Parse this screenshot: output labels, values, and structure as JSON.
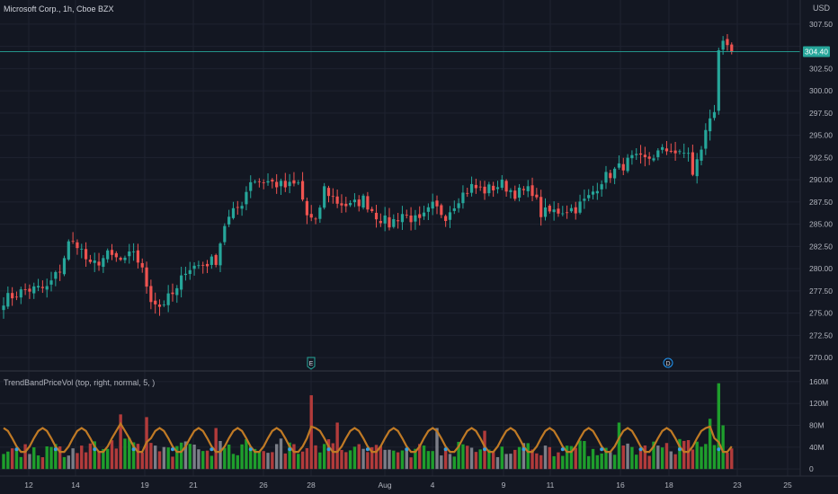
{
  "header": {
    "symbol_title": "Microsoft Corp., 1h, Cboe BZX",
    "currency": "USD"
  },
  "indicator": {
    "title": "TrendBandPriceVol (top, right, normal, 5, )"
  },
  "events": [
    {
      "label": "E",
      "x_label": "28"
    },
    {
      "label": "D",
      "x_label": "18"
    }
  ],
  "colors": {
    "background": "#131722",
    "up": "#26a69a",
    "down": "#ef5350",
    "vol_green": "#1e9e2c",
    "vol_red": "#b23b3b",
    "vol_gray": "#7b7e88",
    "trend_line": "#c07a25",
    "dot": "#3aa0e0",
    "price_line": "#26a69a"
  },
  "chart_data": [
    {
      "type": "candlestick",
      "title": "Microsoft Corp., 1h, Cboe BZX",
      "y_axis_ticks": [
        "307.50",
        "305.00",
        "302.50",
        "300.00",
        "297.50",
        "295.00",
        "292.50",
        "290.00",
        "287.50",
        "285.00",
        "282.50",
        "280.00",
        "277.50",
        "275.00",
        "272.50",
        "270.00"
      ],
      "ylim": [
        268.8,
        308.8
      ],
      "x_tick_labels": [
        "12",
        "14",
        "19",
        "21",
        "26",
        "28",
        "Aug",
        "4",
        "9",
        "11",
        "16",
        "18",
        "23",
        "25"
      ],
      "last_price_label": "304.40",
      "price_waypoints": [
        [
          0,
          276.5
        ],
        [
          5,
          277.6
        ],
        [
          10,
          277.8
        ],
        [
          13,
          279.9
        ],
        [
          15,
          282.8
        ],
        [
          17,
          282.9
        ],
        [
          20,
          280.2
        ],
        [
          24,
          281.5
        ],
        [
          28,
          280.7
        ],
        [
          30,
          282.1
        ],
        [
          32,
          279.7
        ],
        [
          34,
          276.7
        ],
        [
          36,
          275.8
        ],
        [
          40,
          277.5
        ],
        [
          42,
          280.0
        ],
        [
          46,
          280.5
        ],
        [
          49,
          281.0
        ],
        [
          51,
          285.0
        ],
        [
          55,
          287.5
        ],
        [
          57,
          290.0
        ],
        [
          61,
          289.8
        ],
        [
          65,
          289.2
        ],
        [
          68,
          289.5
        ],
        [
          70,
          286.0
        ],
        [
          72,
          285.0
        ],
        [
          74,
          289.0
        ],
        [
          77,
          287.5
        ],
        [
          80,
          287.0
        ],
        [
          83,
          287.8
        ],
        [
          86,
          286.0
        ],
        [
          89,
          285.0
        ],
        [
          92,
          286.2
        ],
        [
          96,
          285.2
        ],
        [
          99,
          287.0
        ],
        [
          102,
          286.0
        ],
        [
          105,
          288.0
        ],
        [
          108,
          289.2
        ],
        [
          111,
          288.8
        ],
        [
          115,
          289.5
        ],
        [
          118,
          288.5
        ],
        [
          122,
          288.8
        ],
        [
          124,
          286.2
        ],
        [
          128,
          286.5
        ],
        [
          132,
          286.8
        ],
        [
          135,
          288.0
        ],
        [
          138,
          290.0
        ],
        [
          141,
          291.0
        ],
        [
          145,
          292.3
        ],
        [
          148,
          292.2
        ],
        [
          151,
          293.0
        ],
        [
          154,
          293.5
        ],
        [
          156,
          292.7
        ],
        [
          158,
          293.2
        ],
        [
          159,
          290.4
        ],
        [
          161,
          293.6
        ],
        [
          163,
          297.0
        ],
        [
          164,
          298.0
        ],
        [
          165,
          304.8
        ],
        [
          166,
          305.0
        ],
        [
          167,
          304.5
        ],
        [
          168,
          304.4
        ]
      ],
      "candle_count": 169
    },
    {
      "type": "bar",
      "title": "TrendBandPriceVol (top, right, normal, 5, )",
      "y_axis_ticks": [
        "160M",
        "120M",
        "80M",
        "40M",
        "0"
      ],
      "ylim": [
        -3,
        168
      ],
      "unit": "M",
      "volume_waypoints": [
        [
          0,
          40
        ],
        [
          10,
          38
        ],
        [
          20,
          42
        ],
        [
          30,
          45
        ],
        [
          40,
          40
        ],
        [
          50,
          44
        ],
        [
          60,
          42
        ],
        [
          70,
          48
        ],
        [
          80,
          40
        ],
        [
          90,
          36
        ],
        [
          100,
          40
        ],
        [
          110,
          38
        ],
        [
          120,
          40
        ],
        [
          130,
          42
        ],
        [
          140,
          38
        ],
        [
          150,
          42
        ],
        [
          160,
          45
        ],
        [
          168,
          35
        ]
      ],
      "volume_spikes": [
        {
          "i": 27,
          "v": 100
        },
        {
          "i": 33,
          "v": 95
        },
        {
          "i": 49,
          "v": 75
        },
        {
          "i": 71,
          "v": 135
        },
        {
          "i": 77,
          "v": 85
        },
        {
          "i": 100,
          "v": 75
        },
        {
          "i": 111,
          "v": 70
        },
        {
          "i": 142,
          "v": 85
        },
        {
          "i": 163,
          "v": 92
        },
        {
          "i": 165,
          "v": 157
        },
        {
          "i": 166,
          "v": 80
        }
      ],
      "trend_line_name": "",
      "trend_line_range": [
        30,
        75
      ]
    }
  ]
}
